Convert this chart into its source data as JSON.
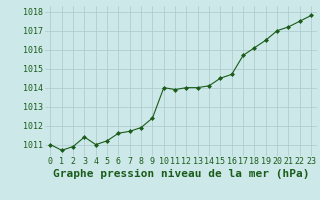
{
  "x": [
    0,
    1,
    2,
    3,
    4,
    5,
    6,
    7,
    8,
    9,
    10,
    11,
    12,
    13,
    14,
    15,
    16,
    17,
    18,
    19,
    20,
    21,
    22,
    23
  ],
  "y": [
    1011.0,
    1010.7,
    1010.9,
    1011.4,
    1011.0,
    1011.2,
    1011.6,
    1011.7,
    1011.9,
    1012.4,
    1014.0,
    1013.9,
    1014.0,
    1014.0,
    1014.1,
    1014.5,
    1014.7,
    1015.7,
    1016.1,
    1016.5,
    1017.0,
    1017.2,
    1017.5,
    1017.8
  ],
  "line_color": "#1a5c1a",
  "marker_color": "#1a5c1a",
  "bg_color": "#cce8e8",
  "grid_color": "#adc8c8",
  "title": "Graphe pression niveau de la mer (hPa)",
  "xlabel_ticks": [
    0,
    1,
    2,
    3,
    4,
    5,
    6,
    7,
    8,
    9,
    10,
    11,
    12,
    13,
    14,
    15,
    16,
    17,
    18,
    19,
    20,
    21,
    22,
    23
  ],
  "ytick_labels": [
    1011,
    1012,
    1013,
    1014,
    1015,
    1016,
    1017,
    1018
  ],
  "ylim": [
    1010.4,
    1018.3
  ],
  "xlim": [
    -0.5,
    23.5
  ],
  "title_fontsize": 8,
  "tick_fontsize": 6,
  "tick_color": "#1a5c1a"
}
